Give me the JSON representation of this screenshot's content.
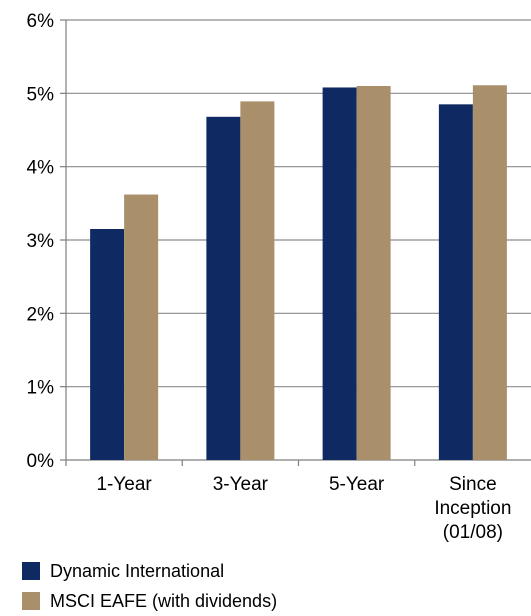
{
  "chart_data": {
    "type": "bar",
    "categories": [
      [
        "1-Year"
      ],
      [
        "3-Year"
      ],
      [
        "5-Year"
      ],
      [
        "Since",
        "Inception",
        "(01/08)"
      ]
    ],
    "series": [
      {
        "name": "Dynamic International",
        "values": [
          3.15,
          4.68,
          5.08,
          4.85
        ],
        "color": "#0f2a63"
      },
      {
        "name": "MSCI EAFE (with dividends)",
        "values": [
          3.62,
          4.89,
          5.1,
          5.11
        ],
        "color": "#a98f6a"
      }
    ],
    "ylim": [
      0,
      6
    ],
    "yticks": [
      "0%",
      "1%",
      "2%",
      "3%",
      "4%",
      "5%",
      "6%"
    ],
    "grid": true,
    "legend_position": "bottom-left"
  }
}
